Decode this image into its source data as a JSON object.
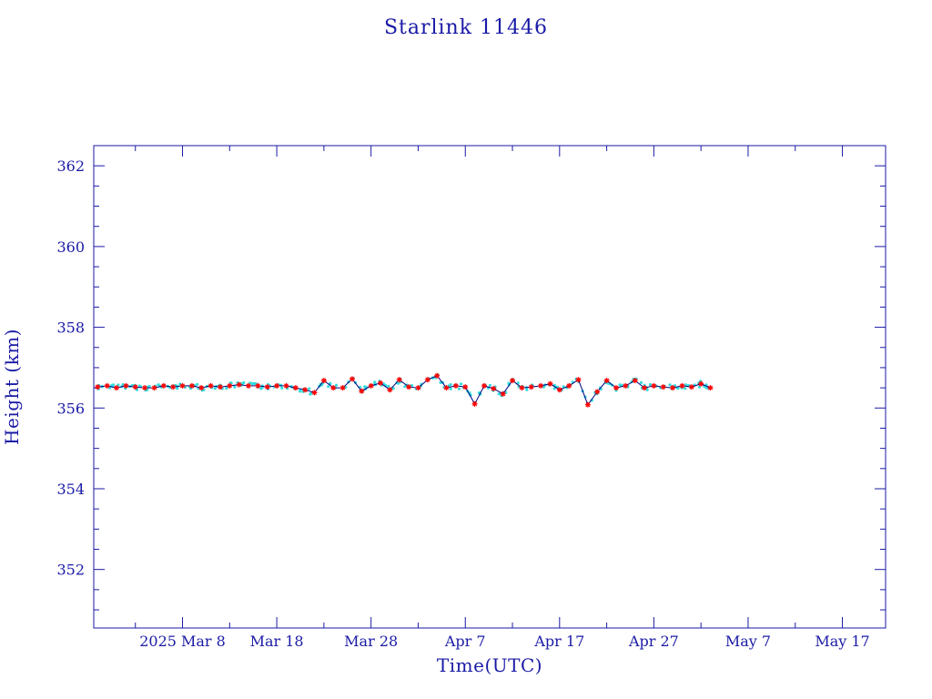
{
  "colors": {
    "axis": "#1a1aa6",
    "text": "#1a1aa6",
    "line": "#000080",
    "marker": "#ff0000",
    "band": "#33dddd",
    "background": "#ffffff"
  },
  "chart_data": {
    "type": "line",
    "title": "Starlink 11446",
    "xlabel": "Time(UTC)",
    "ylabel": "Height (km)",
    "xlim": [
      "2025-02-26T14:00",
      "2025-05-21T14:00"
    ],
    "ylim": [
      350.55,
      362.5
    ],
    "grid": false,
    "x_ticks": [
      {
        "date": "2025-03-08",
        "label": "2025 Mar  8"
      },
      {
        "date": "2025-03-18",
        "label": "Mar 18"
      },
      {
        "date": "2025-03-28",
        "label": "Mar 28"
      },
      {
        "date": "2025-04-07",
        "label": "Apr  7"
      },
      {
        "date": "2025-04-17",
        "label": "Apr 17"
      },
      {
        "date": "2025-04-27",
        "label": "Apr 27"
      },
      {
        "date": "2025-05-07",
        "label": "May  7"
      },
      {
        "date": "2025-05-17",
        "label": "May 17"
      }
    ],
    "y_ticks": [
      352,
      354,
      356,
      358,
      360,
      362
    ],
    "y_tick_labels": [
      "352",
      "354",
      "356",
      "358",
      "360",
      "362"
    ],
    "series": [
      {
        "marker": "asterisk",
        "x": [
          "2025-02-27",
          "2025-02-28",
          "2025-03-01",
          "2025-03-02",
          "2025-03-03",
          "2025-03-04",
          "2025-03-05",
          "2025-03-06",
          "2025-03-07",
          "2025-03-08",
          "2025-03-09",
          "2025-03-10",
          "2025-03-11",
          "2025-03-12",
          "2025-03-13",
          "2025-03-14",
          "2025-03-15",
          "2025-03-16",
          "2025-03-17",
          "2025-03-18",
          "2025-03-19",
          "2025-03-20",
          "2025-03-21",
          "2025-03-22",
          "2025-03-23",
          "2025-03-24",
          "2025-03-25",
          "2025-03-26",
          "2025-03-27",
          "2025-03-28",
          "2025-03-29",
          "2025-03-30",
          "2025-03-31",
          "2025-04-01",
          "2025-04-02",
          "2025-04-03",
          "2025-04-04",
          "2025-04-05",
          "2025-04-06",
          "2025-04-07",
          "2025-04-08",
          "2025-04-09",
          "2025-04-10",
          "2025-04-11",
          "2025-04-12",
          "2025-04-13",
          "2025-04-14",
          "2025-04-15",
          "2025-04-16",
          "2025-04-17",
          "2025-04-18",
          "2025-04-19",
          "2025-04-20",
          "2025-04-21",
          "2025-04-22",
          "2025-04-23",
          "2025-04-24",
          "2025-04-25",
          "2025-04-26",
          "2025-04-27",
          "2025-04-28",
          "2025-04-29",
          "2025-04-30",
          "2025-05-01",
          "2025-05-02",
          "2025-05-03"
        ],
        "y": [
          356.52,
          356.55,
          356.5,
          356.55,
          356.52,
          356.5,
          356.5,
          356.55,
          356.52,
          356.55,
          356.55,
          356.5,
          356.55,
          356.52,
          356.55,
          356.58,
          356.55,
          356.55,
          356.52,
          356.55,
          356.55,
          356.5,
          356.45,
          356.38,
          356.68,
          356.5,
          356.5,
          356.72,
          356.42,
          356.55,
          356.62,
          356.45,
          356.7,
          356.52,
          356.5,
          356.7,
          356.8,
          356.5,
          356.55,
          356.52,
          356.1,
          356.55,
          356.48,
          356.35,
          356.68,
          356.5,
          356.52,
          356.55,
          356.6,
          356.45,
          356.55,
          356.7,
          356.08,
          356.4,
          356.68,
          356.5,
          356.55,
          356.68,
          356.5,
          356.55,
          356.52,
          356.5,
          356.55,
          356.52,
          356.6,
          356.5
        ]
      }
    ]
  }
}
